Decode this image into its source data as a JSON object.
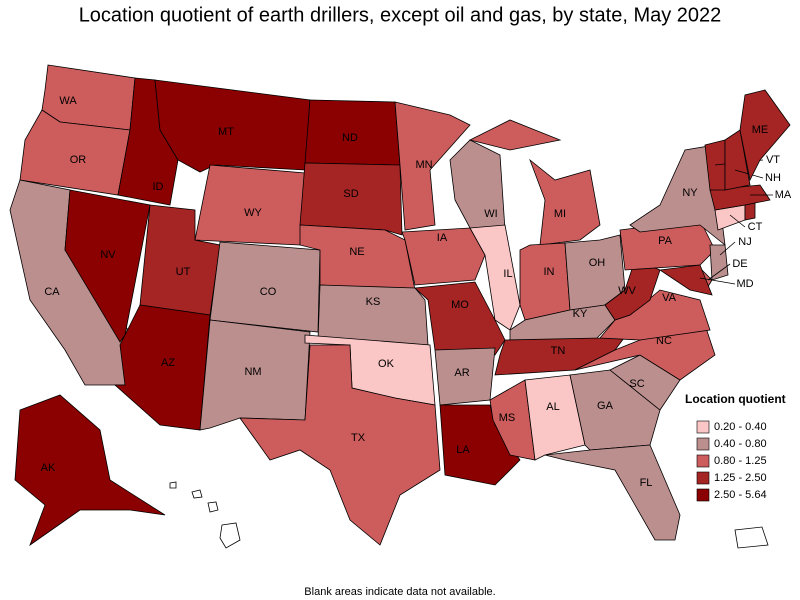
{
  "title": "Location quotient of earth drillers, except oil and gas, by state, May 2022",
  "legend": {
    "title": "Location quotient",
    "items": [
      {
        "label": "0.20 - 0.40",
        "color": "#fac6c6"
      },
      {
        "label": "0.40 - 0.80",
        "color": "#bc8f8f"
      },
      {
        "label": "0.80 - 1.25",
        "color": "#cd5c5c"
      },
      {
        "label": "1.25 - 2.50",
        "color": "#a52424"
      },
      {
        "label": "2.50 - 5.64",
        "color": "#8b0000"
      }
    ]
  },
  "states": [
    {
      "label": "WA",
      "color": "#cd5c5c"
    },
    {
      "label": "OR",
      "color": "#cd5c5c"
    },
    {
      "label": "CA",
      "color": "#bc8f8f"
    },
    {
      "label": "NV",
      "color": "#8b0000"
    },
    {
      "label": "ID",
      "color": "#8b0000"
    },
    {
      "label": "MT",
      "color": "#8b0000"
    },
    {
      "label": "WY",
      "color": "#cd5c5c"
    },
    {
      "label": "UT",
      "color": "#a52424"
    },
    {
      "label": "AZ",
      "color": "#8b0000"
    },
    {
      "label": "CO",
      "color": "#bc8f8f"
    },
    {
      "label": "NM",
      "color": "#bc8f8f"
    },
    {
      "label": "ND",
      "color": "#8b0000"
    },
    {
      "label": "SD",
      "color": "#a52424"
    },
    {
      "label": "NE",
      "color": "#cd5c5c"
    },
    {
      "label": "KS",
      "color": "#bc8f8f"
    },
    {
      "label": "OK",
      "color": "#fac6c6"
    },
    {
      "label": "TX",
      "color": "#cd5c5c"
    },
    {
      "label": "MN",
      "color": "#cd5c5c"
    },
    {
      "label": "IA",
      "color": "#cd5c5c"
    },
    {
      "label": "MO",
      "color": "#a52424"
    },
    {
      "label": "AR",
      "color": "#bc8f8f"
    },
    {
      "label": "LA",
      "color": "#8b0000"
    },
    {
      "label": "MS",
      "color": "#cd5c5c"
    },
    {
      "label": "AL",
      "color": "#fac6c6"
    },
    {
      "label": "WI",
      "color": "#bc8f8f"
    },
    {
      "label": "IL",
      "color": "#fac6c6"
    },
    {
      "label": "MI",
      "color": "#cd5c5c"
    },
    {
      "label": "IN",
      "color": "#cd5c5c"
    },
    {
      "label": "OH",
      "color": "#bc8f8f"
    },
    {
      "label": "KY",
      "color": "#bc8f8f"
    },
    {
      "label": "TN",
      "color": "#a52424"
    },
    {
      "label": "GA",
      "color": "#bc8f8f"
    },
    {
      "label": "FL",
      "color": "#bc8f8f"
    },
    {
      "label": "SC",
      "color": "#bc8f8f"
    },
    {
      "label": "NC",
      "color": "#cd5c5c"
    },
    {
      "label": "VA",
      "color": "#cd5c5c"
    },
    {
      "label": "WV",
      "color": "#a52424"
    },
    {
      "label": "PA",
      "color": "#cd5c5c"
    },
    {
      "label": "NY",
      "color": "#bc8f8f"
    },
    {
      "label": "NJ",
      "color": "#bc8f8f"
    },
    {
      "label": "DE",
      "color": "#cd5c5c"
    },
    {
      "label": "MD",
      "color": "#a52424"
    },
    {
      "label": "CT",
      "color": "#fac6c6"
    },
    {
      "label": null,
      "color": "#a52424"
    },
    {
      "label": "MA",
      "color": "#a52424"
    },
    {
      "label": "VT",
      "color": "#a52424"
    },
    {
      "label": "NH",
      "color": "#a52424"
    },
    {
      "label": "ME",
      "color": "#a52424"
    },
    {
      "label": "AK",
      "color": "#8b0000"
    }
  ],
  "footnote": "Blank areas indicate data not available."
}
